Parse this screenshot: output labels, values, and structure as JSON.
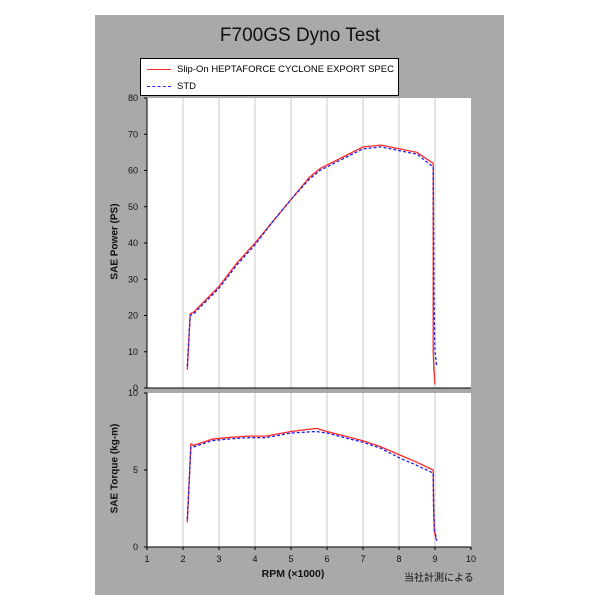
{
  "title": "F700GS Dyno Test",
  "legend": [
    {
      "label": "Slip-On HEPTAFORCE  CYCLONE EXPORT SPEC",
      "color": "#ff2a2a",
      "style": "solid"
    },
    {
      "label": "STD",
      "color": "#2222ee",
      "style": "dashed"
    }
  ],
  "xlabel": "RPM (×1000)",
  "credit": "当社計測による",
  "chart_data": [
    {
      "type": "line",
      "ylabel": "SAE Power (PS)",
      "xlim": [
        1,
        10
      ],
      "ylim": [
        0,
        80
      ],
      "yticks": [
        0,
        10,
        20,
        30,
        40,
        50,
        60,
        70,
        80
      ],
      "grid": "vertical",
      "series": [
        {
          "name": "Slip-On HEPTAFORCE  CYCLONE EXPORT SPEC",
          "color": "#ff2a2a",
          "style": "solid",
          "x": [
            2.12,
            2.2,
            2.3,
            3.0,
            3.5,
            4.0,
            4.5,
            5.0,
            5.5,
            5.8,
            6.0,
            6.5,
            7.0,
            7.5,
            8.0,
            8.5,
            8.95,
            8.95,
            8.97,
            9.0
          ],
          "y": [
            5,
            20.5,
            21,
            28,
            34.5,
            40,
            46,
            52,
            58,
            60.5,
            61.5,
            64,
            66.5,
            67,
            66,
            65,
            62,
            10,
            5,
            1
          ]
        },
        {
          "name": "STD",
          "color": "#2222ee",
          "style": "dashed",
          "x": [
            2.12,
            2.2,
            2.3,
            3.0,
            3.5,
            4.0,
            4.5,
            5.0,
            5.5,
            5.8,
            6.0,
            6.5,
            7.0,
            7.5,
            8.0,
            8.5,
            8.95,
            8.97,
            9.0,
            9.05
          ],
          "y": [
            6,
            20,
            20.5,
            27.5,
            34,
            39.5,
            46,
            52,
            57.5,
            60,
            61,
            63.5,
            66,
            66.5,
            65.5,
            64.5,
            61,
            25,
            10,
            6
          ]
        }
      ]
    },
    {
      "type": "line",
      "ylabel": "SAE Torque (kg-m)",
      "xlabel": "RPM (×1000)",
      "xlim": [
        1,
        10
      ],
      "ylim": [
        0,
        10
      ],
      "yticks": [
        0,
        5,
        10
      ],
      "xticks": [
        1,
        2,
        3,
        4,
        5,
        6,
        7,
        8,
        9,
        10
      ],
      "grid": "vertical",
      "series": [
        {
          "name": "Slip-On HEPTAFORCE  CYCLONE EXPORT SPEC",
          "color": "#ff2a2a",
          "style": "solid",
          "x": [
            2.12,
            2.22,
            2.3,
            2.8,
            3.2,
            3.8,
            4.3,
            5.0,
            5.7,
            6.0,
            6.5,
            7.0,
            7.5,
            8.0,
            8.5,
            8.95,
            8.96,
            8.98,
            9.03
          ],
          "y": [
            1.6,
            6.7,
            6.6,
            7.0,
            7.1,
            7.2,
            7.2,
            7.5,
            7.7,
            7.5,
            7.2,
            6.9,
            6.5,
            6.0,
            5.5,
            5.0,
            2.5,
            1.0,
            0.5
          ]
        },
        {
          "name": "STD",
          "color": "#2222ee",
          "style": "dashed",
          "x": [
            2.12,
            2.22,
            2.3,
            2.8,
            3.2,
            3.8,
            4.3,
            5.0,
            5.7,
            6.0,
            6.5,
            7.0,
            7.5,
            8.0,
            8.5,
            8.95,
            8.96,
            8.98,
            9.05
          ],
          "y": [
            1.8,
            6.5,
            6.5,
            6.9,
            7.0,
            7.1,
            7.1,
            7.4,
            7.5,
            7.4,
            7.1,
            6.8,
            6.4,
            5.8,
            5.3,
            4.8,
            2.5,
            1.2,
            0.4
          ]
        }
      ]
    }
  ]
}
